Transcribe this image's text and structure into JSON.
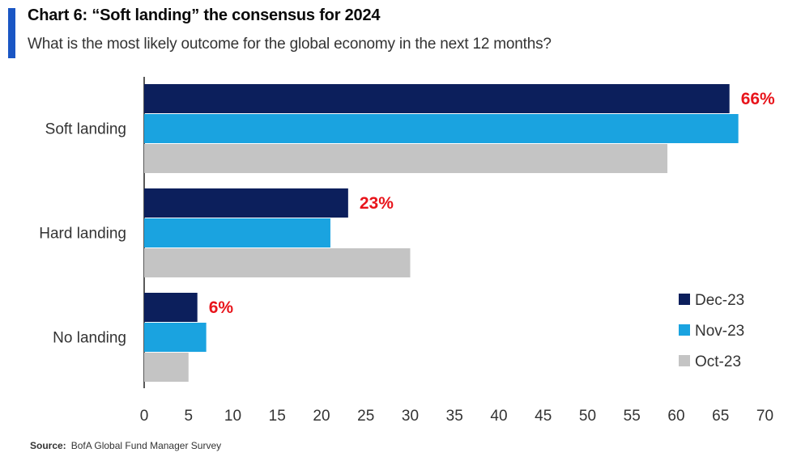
{
  "title": "Chart 6: “Soft landing” the consensus for 2024",
  "subtitle": "What is the most likely outcome for the global economy in the next 12 months?",
  "source_label": "Source:",
  "source_text": "BofA Global Fund Manager Survey",
  "colors": {
    "accent": "#1a56c4",
    "dec23": "#0c1f5c",
    "nov23": "#1aa3e0",
    "oct23": "#c4c4c4",
    "label_red": "#e8141b"
  },
  "chart_data": {
    "type": "bar",
    "orientation": "horizontal",
    "categories": [
      "Soft landing",
      "Hard landing",
      "No landing"
    ],
    "series": [
      {
        "name": "Dec-23",
        "values": [
          66,
          23,
          6
        ]
      },
      {
        "name": "Nov-23",
        "values": [
          67,
          21,
          7
        ]
      },
      {
        "name": "Oct-23",
        "values": [
          59,
          30,
          5
        ]
      }
    ],
    "data_labels": [
      "66%",
      "23%",
      "6%"
    ],
    "xlim": [
      0,
      70
    ],
    "xticks": [
      0,
      5,
      10,
      15,
      20,
      25,
      30,
      35,
      40,
      45,
      50,
      55,
      60,
      65,
      70
    ],
    "grid": false,
    "legend_position": "bottom-right"
  }
}
